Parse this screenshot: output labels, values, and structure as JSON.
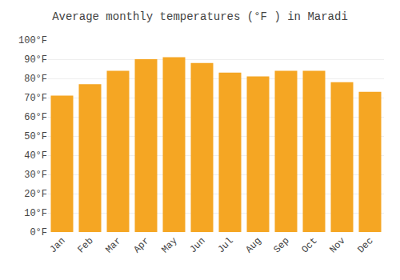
{
  "chart_data": {
    "type": "bar",
    "title": "Average monthly temperatures (°F ) in Maradi",
    "categories": [
      "Jan",
      "Feb",
      "Mar",
      "Apr",
      "May",
      "Jun",
      "Jul",
      "Aug",
      "Sep",
      "Oct",
      "Nov",
      "Dec"
    ],
    "values": [
      71,
      77,
      84,
      90,
      91,
      88,
      83,
      81,
      84,
      84,
      78,
      73
    ],
    "color": "#F5A623",
    "ylim": [
      0,
      100
    ],
    "yticks": [
      {
        "value": 0,
        "label": "0°F"
      },
      {
        "value": 10,
        "label": "10°F"
      },
      {
        "value": 20,
        "label": "20°F"
      },
      {
        "value": 30,
        "label": "30°F"
      },
      {
        "value": 40,
        "label": "40°F"
      },
      {
        "value": 50,
        "label": "50°F"
      },
      {
        "value": 60,
        "label": "60°F"
      },
      {
        "value": 70,
        "label": "70°F"
      },
      {
        "value": 80,
        "label": "80°F"
      },
      {
        "value": 90,
        "label": "90°F"
      },
      {
        "value": 100,
        "label": "100°F"
      }
    ],
    "grid": true
  }
}
